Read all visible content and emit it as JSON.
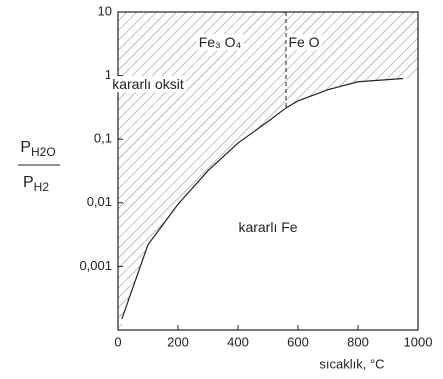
{
  "chart_data": {
    "type": "line",
    "xlabel": "sıcaklık, °C",
    "ylabel": {
      "numerator": {
        "base": "P",
        "sub": "H2O"
      },
      "denominator": {
        "base": "P",
        "sub": "H2"
      }
    },
    "series": [
      {
        "x": [
          13,
          100,
          200,
          300,
          400,
          500,
          560,
          600,
          700,
          800,
          950
        ],
        "values": [
          0.00015,
          0.0022,
          0.0095,
          0.032,
          0.087,
          0.19,
          0.31,
          0.4,
          0.6,
          0.8,
          0.9
        ],
        "color": "#222222"
      }
    ],
    "divider": {
      "x": 560,
      "y": 0.31
    },
    "annotations": [
      {
        "text": "kararlı oksit",
        "x": 100,
        "y": 0.7
      },
      {
        "text": "Fe₃ O₄",
        "x": 340,
        "y": 3.2
      },
      {
        "text": "Fe O",
        "x": 620,
        "y": 3.2
      },
      {
        "text": "kararlı Fe",
        "x": 500,
        "y": 0.004
      }
    ],
    "xlim": [
      0,
      1000
    ],
    "xticks": [
      0,
      200,
      400,
      600,
      800,
      1000
    ],
    "ylim": [
      0.0001,
      10
    ],
    "log_y": true,
    "yticks": [
      10,
      1,
      {
        "value": 0.1,
        "label": "0,1"
      },
      {
        "value": 0.01,
        "label": "0,01"
      },
      {
        "value": 0.001,
        "label": "0,001"
      }
    ],
    "hatch": true
  }
}
